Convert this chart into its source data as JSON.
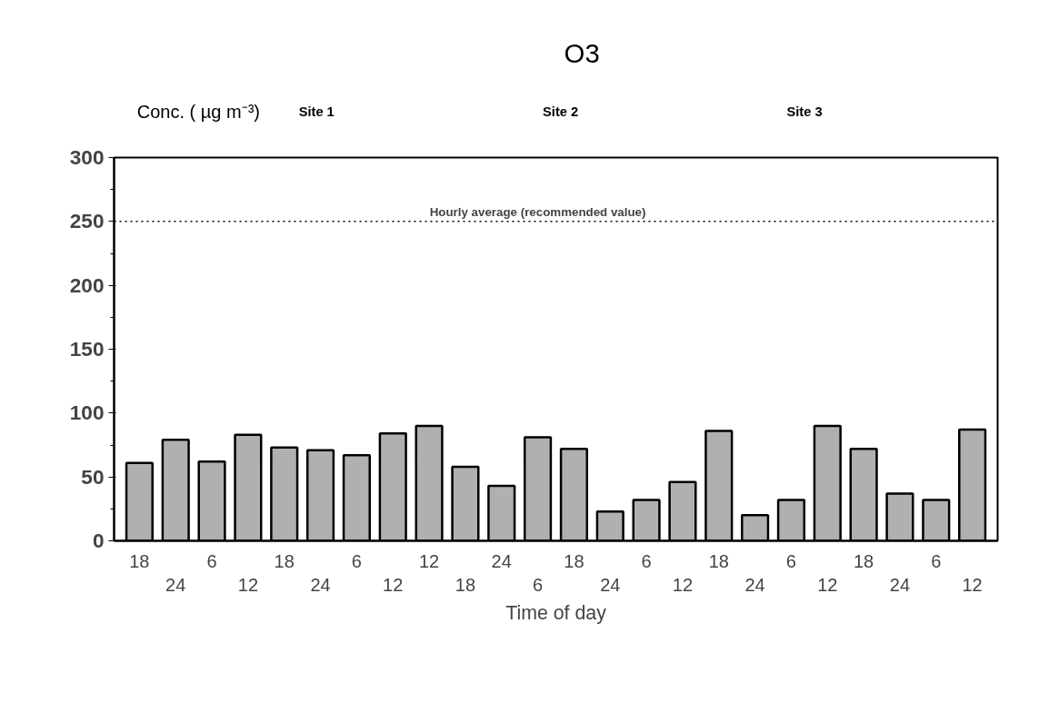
{
  "chart_data": {
    "type": "bar",
    "title": "O3",
    "ylabel": "Conc. ( µg m⁻³)",
    "xlabel": "Time of day",
    "categories": [
      "18",
      "24",
      "6",
      "12",
      "18",
      "24",
      "6",
      "12",
      "12",
      "18",
      "24",
      "6",
      "18",
      "24",
      "6",
      "12",
      "18",
      "24",
      "6",
      "12",
      "18",
      "24",
      "6",
      "12"
    ],
    "values": [
      61,
      79,
      62,
      83,
      73,
      71,
      67,
      84,
      90,
      58,
      43,
      81,
      72,
      23,
      32,
      46,
      86,
      20,
      32,
      90,
      72,
      37,
      32,
      87
    ],
    "color": "#b0b0b0",
    "ylim": [
      0,
      300
    ],
    "yticks": [
      0,
      50,
      100,
      150,
      200,
      250,
      300
    ],
    "grid": false,
    "ref_lines": [
      {
        "axis": "y",
        "value": 250,
        "label": "Hourly average (recommended value)",
        "color": "#000000",
        "line_style": "dotted"
      }
    ],
    "annotations": [
      "Site 1",
      "Site 2",
      "Site 3"
    ]
  }
}
